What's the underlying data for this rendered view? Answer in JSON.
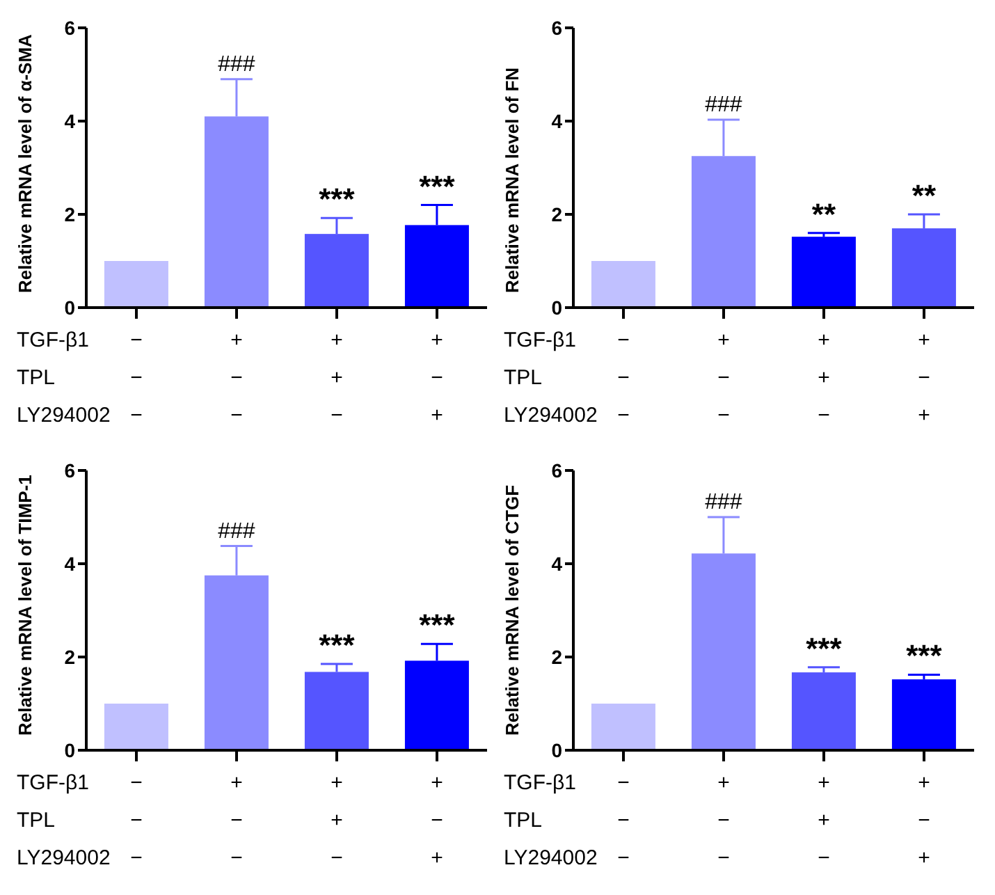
{
  "chart_data": [
    {
      "type": "bar",
      "ylabel": "Relative mRNA level of α-SMA",
      "categories": [
        "−\n−\n−",
        "+\n−\n−",
        "+\n+\n−",
        "+\n−\n+"
      ],
      "values": [
        1,
        4.1,
        1.58,
        1.77
      ],
      "colors": [
        "#c0c0ff",
        "#8b8bff",
        "#5555ff",
        "#0000ff"
      ],
      "errors": [
        null,
        [
          4.1,
          4.9
        ],
        [
          1.58,
          1.92
        ],
        [
          1.77,
          2.2
        ]
      ],
      "value_labels": [
        null,
        "###",
        "***",
        "***"
      ],
      "annotations": [
        "TGF-β1",
        "TPL",
        "LY294002"
      ],
      "ylim": [
        0,
        6
      ],
      "yticks": [
        0,
        2,
        4,
        6
      ],
      "grid": false,
      "legend": false
    },
    {
      "type": "bar",
      "ylabel": "Relative mRNA level of FN",
      "categories": [
        "−\n−\n−",
        "+\n−\n−",
        "+\n+\n−",
        "+\n−\n+"
      ],
      "values": [
        1,
        3.25,
        1.52,
        1.7
      ],
      "colors": [
        "#c0c0ff",
        "#8b8bff",
        "#0000ff",
        "#5555ff"
      ],
      "errors": [
        null,
        [
          3.25,
          4.03
        ],
        [
          1.52,
          1.6
        ],
        [
          1.7,
          2.0
        ]
      ],
      "value_labels": [
        null,
        "###",
        "**",
        "**"
      ],
      "annotations": [
        "TGF-β1",
        "TPL",
        "LY294002"
      ],
      "ylim": [
        0,
        6
      ],
      "yticks": [
        0,
        2,
        4,
        6
      ],
      "grid": false,
      "legend": false
    },
    {
      "type": "bar",
      "ylabel": "Relative mRNA level of TIMP-1",
      "categories": [
        "−\n−\n−",
        "+\n−\n−",
        "+\n+\n−",
        "+\n−\n+"
      ],
      "values": [
        1,
        3.75,
        1.68,
        1.92
      ],
      "colors": [
        "#c0c0ff",
        "#8b8bff",
        "#5555ff",
        "#0000ff"
      ],
      "errors": [
        null,
        [
          3.75,
          4.38
        ],
        [
          1.68,
          1.85
        ],
        [
          1.92,
          2.28
        ]
      ],
      "value_labels": [
        null,
        "###",
        "***",
        "***"
      ],
      "annotations": [
        "TGF-β1",
        "TPL",
        "LY294002"
      ],
      "ylim": [
        0,
        6
      ],
      "yticks": [
        0,
        2,
        4,
        6
      ],
      "grid": false,
      "legend": false
    },
    {
      "type": "bar",
      "ylabel": "Relative mRNA level of CTGF",
      "categories": [
        "−\n−\n−",
        "+\n−\n−",
        "+\n+\n−",
        "+\n−\n+"
      ],
      "values": [
        1,
        4.22,
        1.67,
        1.52
      ],
      "colors": [
        "#c0c0ff",
        "#8b8bff",
        "#5555ff",
        "#0000ff"
      ],
      "errors": [
        null,
        [
          4.22,
          5.0
        ],
        [
          1.67,
          1.78
        ],
        [
          1.52,
          1.62
        ]
      ],
      "value_labels": [
        null,
        "###",
        "***",
        "***"
      ],
      "annotations": [
        "TGF-β1",
        "TPL",
        "LY294002"
      ],
      "ylim": [
        0,
        6
      ],
      "yticks": [
        0,
        2,
        4,
        6
      ],
      "grid": false,
      "legend": false
    }
  ]
}
